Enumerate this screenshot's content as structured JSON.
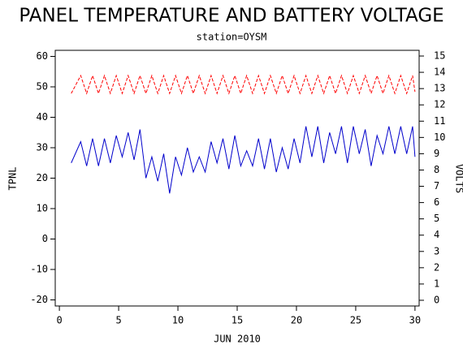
{
  "chart_data": {
    "type": "line",
    "title": "PANEL TEMPERATURE AND BATTERY VOLTAGE",
    "subtitle": "station=OYSM",
    "xlabel": "JUN 2010",
    "ylabel": "TPNL",
    "y2label": "VOLTS",
    "x": [
      1,
      1.8,
      2.3,
      2.8,
      3.3,
      3.8,
      4.3,
      4.8,
      5.3,
      5.8,
      6.3,
      6.8,
      7.3,
      7.8,
      8.3,
      8.8,
      9.3,
      9.8,
      10.3,
      10.8,
      11.3,
      11.8,
      12.3,
      12.8,
      13.3,
      13.8,
      14.3,
      14.8,
      15.3,
      15.8,
      16.3,
      16.8,
      17.3,
      17.8,
      18.3,
      18.8,
      19.3,
      19.8,
      20.3,
      20.8,
      21.3,
      21.8,
      22.3,
      22.8,
      23.3,
      23.8,
      24.3,
      24.8,
      25.3,
      25.8,
      26.3,
      26.8,
      27.3,
      27.8,
      28.3,
      28.8,
      29.3,
      29.8,
      30
    ],
    "series": [
      {
        "color": "#0000cc",
        "dashed": false,
        "values": [
          25,
          32,
          24,
          33,
          24,
          33,
          25,
          34,
          27,
          35,
          26,
          36,
          20,
          27,
          19,
          28,
          15,
          27,
          21,
          30,
          22,
          27,
          22,
          32,
          25,
          33,
          23,
          34,
          24,
          29,
          24,
          33,
          23,
          33,
          22,
          30,
          23,
          33,
          25,
          37,
          27,
          37,
          25,
          35,
          28,
          37,
          25,
          37,
          28,
          36,
          24,
          34,
          28,
          37,
          28,
          37,
          28,
          37,
          27
        ]
      },
      {
        "color": "#ff0000",
        "dashed": true,
        "axis": "y2",
        "values": [
          12.7,
          13.8,
          12.7,
          13.8,
          12.7,
          13.8,
          12.7,
          13.8,
          12.7,
          13.8,
          12.7,
          13.8,
          12.7,
          13.8,
          12.7,
          13.8,
          12.7,
          13.8,
          12.7,
          13.8,
          12.7,
          13.8,
          12.7,
          13.8,
          12.7,
          13.8,
          12.7,
          13.8,
          12.7,
          13.8,
          12.7,
          13.8,
          12.7,
          13.8,
          12.7,
          13.8,
          12.7,
          13.8,
          12.7,
          13.8,
          12.7,
          13.8,
          12.7,
          13.8,
          12.7,
          13.8,
          12.7,
          13.8,
          12.7,
          13.8,
          12.7,
          13.8,
          12.7,
          13.8,
          12.7,
          13.8,
          12.7,
          13.8,
          12.8
        ]
      }
    ],
    "xlim": [
      -0.35,
      30.35
    ],
    "xticks": [
      0,
      5,
      10,
      15,
      20,
      25,
      30
    ],
    "ylim": [
      -22,
      62
    ],
    "yticks": [
      -20,
      -10,
      0,
      10,
      20,
      30,
      40,
      50,
      60
    ],
    "y2lim": [
      -0.35,
      15.35
    ],
    "y2ticks": [
      0,
      1,
      2,
      3,
      4,
      5,
      6,
      7,
      8,
      9,
      10,
      11,
      12,
      13,
      14,
      15
    ]
  }
}
